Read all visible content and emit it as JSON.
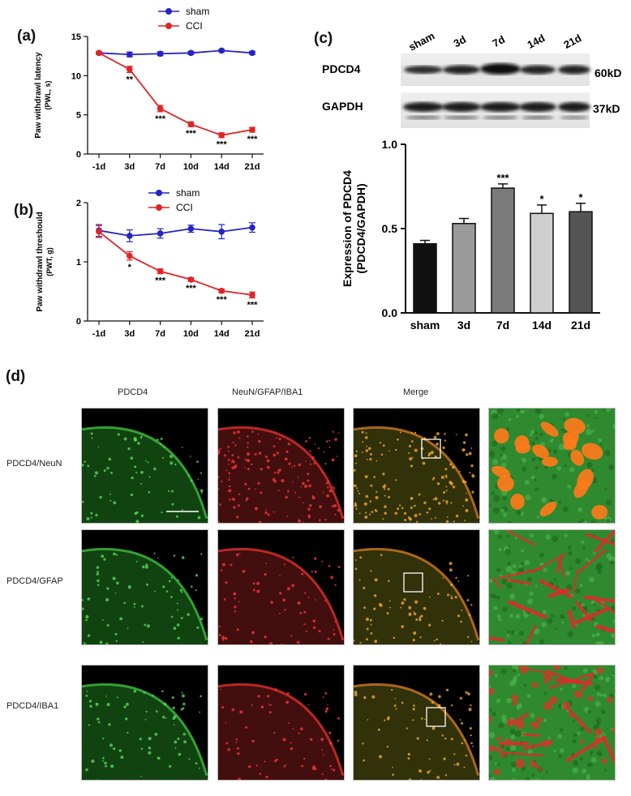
{
  "panels": {
    "a": "(a)",
    "b": "(b)",
    "c": "(c)",
    "d": "(d)"
  },
  "chart_data": [
    {
      "id": "a",
      "type": "line",
      "ylabel": "Paw withdrawl latency",
      "ylabel2": "(PWL, s)",
      "categories": [
        "-1d",
        "3d",
        "7d",
        "10d",
        "14d",
        "21d"
      ],
      "yticks": [
        "0",
        "5",
        "10",
        "15"
      ],
      "ylim": [
        0,
        15
      ],
      "legend_position": "top",
      "series": [
        {
          "name": "sham",
          "color": "#2424c4",
          "values": [
            12.9,
            12.7,
            12.8,
            12.9,
            13.2,
            12.9
          ],
          "errors": [
            0.15,
            0.3,
            0.25,
            0.2,
            0.15,
            0.2
          ],
          "sig": [
            "",
            "",
            "",
            "",
            "",
            ""
          ]
        },
        {
          "name": "CCI",
          "color": "#e02424",
          "values": [
            12.9,
            10.8,
            5.8,
            3.8,
            2.4,
            3.1
          ],
          "errors": [
            0.15,
            0.4,
            0.4,
            0.3,
            0.3,
            0.3
          ],
          "sig": [
            "",
            "**",
            "***",
            "***",
            "***",
            "***"
          ]
        }
      ]
    },
    {
      "id": "b",
      "type": "line",
      "ylabel": "Paw withdrawl threshould",
      "ylabel2": "(PWT, g)",
      "categories": [
        "-1d",
        "3d",
        "7d",
        "10d",
        "14d",
        "21d"
      ],
      "yticks": [
        "0",
        "1",
        "2"
      ],
      "ylim": [
        0,
        2
      ],
      "legend_position": "top",
      "series": [
        {
          "name": "sham",
          "color": "#2424c4",
          "values": [
            1.53,
            1.44,
            1.48,
            1.56,
            1.51,
            1.58
          ],
          "errors": [
            0.1,
            0.1,
            0.08,
            0.06,
            0.12,
            0.08
          ],
          "sig": [
            "",
            "",
            "",
            "",
            "",
            ""
          ]
        },
        {
          "name": "CCI",
          "color": "#e02424",
          "values": [
            1.51,
            1.1,
            0.84,
            0.7,
            0.51,
            0.44
          ],
          "errors": [
            0.1,
            0.07,
            0.04,
            0.03,
            0.03,
            0.05
          ],
          "sig": [
            "",
            "*",
            "***",
            "***",
            "***",
            "***"
          ]
        }
      ]
    },
    {
      "id": "c",
      "type": "bar",
      "ylabel": "Expression of PDCD4",
      "ylabel2": "(PDCD4/GAPDH)",
      "categories": [
        "sham",
        "3d",
        "7d",
        "14d",
        "21d"
      ],
      "yticks": [
        "0.0",
        "0.5",
        "1.0"
      ],
      "ylim": [
        0,
        1
      ],
      "values": [
        0.41,
        0.53,
        0.74,
        0.59,
        0.6
      ],
      "errors": [
        0.02,
        0.03,
        0.025,
        0.05,
        0.05
      ],
      "colors": [
        "#111111",
        "#9a9a9a",
        "#7a7a7a",
        "#cfcfcf",
        "#555555"
      ],
      "sig": [
        "",
        "",
        "***",
        "*",
        "*"
      ]
    }
  ],
  "blot": {
    "lanes": [
      "sham",
      "3d",
      "7d",
      "14d",
      "21d"
    ],
    "proteins": [
      "PDCD4",
      "GAPDH"
    ],
    "sizes": [
      "60kD",
      "37kD"
    ]
  },
  "micro": {
    "columns": [
      "PDCD4",
      "NeuN/GFAP/IBA1",
      "Merge"
    ],
    "rows": [
      "PDCD4/NeuN",
      "PDCD4/GFAP",
      "PDCD4/IBA1"
    ]
  }
}
